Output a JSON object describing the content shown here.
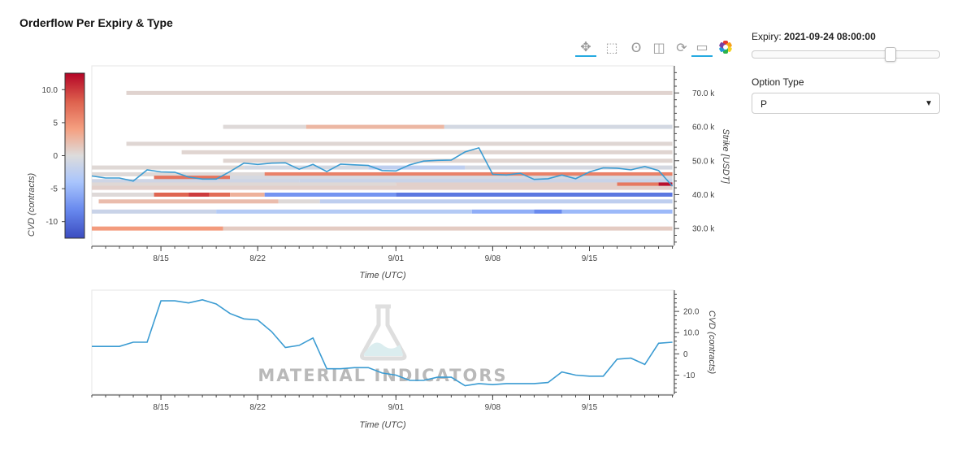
{
  "title": "Orderflow Per Expiry & Type",
  "sidebar": {
    "expiry_label": "Expiry:",
    "expiry_value": "2021-09-24 08:00:00",
    "expiry_slider_fraction": 0.75,
    "option_type_label": "Option Type",
    "option_type_value": "P"
  },
  "toolbar": {
    "tools": [
      {
        "icon": "pan-icon",
        "glyph": "✥",
        "active": true
      },
      {
        "icon": "box-zoom-icon",
        "glyph": "⬚",
        "active": false
      },
      {
        "icon": "wheel-zoom-icon",
        "glyph": "ʘ",
        "active": false
      },
      {
        "icon": "save-icon",
        "glyph": "◫",
        "active": false
      },
      {
        "icon": "reset-icon",
        "glyph": "⟳",
        "active": false
      },
      {
        "icon": "hover-icon",
        "glyph": "▭",
        "active": true
      },
      {
        "icon": "bokeh-logo-icon",
        "glyph": "",
        "active": false
      }
    ]
  },
  "watermark": "MATERIAL INDICATORS",
  "colorbar": {
    "label": "CVD (contracts)",
    "min": -12.5,
    "max": 12.5,
    "ticks": [
      10.0,
      5,
      0,
      -5,
      -10
    ],
    "tick_labels": [
      "10.0",
      "5",
      "0",
      "-5",
      "-10"
    ],
    "colors": [
      "#b40426",
      "#dd604d",
      "#f5a081",
      "#dddcdc",
      "#a9c5fc",
      "#6788ee",
      "#3b4cc0"
    ]
  },
  "chart_data": [
    {
      "type": "heatmap",
      "title": "",
      "xlabel": "Time (UTC)",
      "ylabel": "Strike [USDT]",
      "x_ticks": [
        "2021-08-15",
        "2021-08-22",
        "2021-09-01",
        "2021-09-08",
        "2021-09-15"
      ],
      "x_tick_labels": [
        "8/15",
        "8/22",
        "9/01",
        "9/08",
        "9/15"
      ],
      "xlim": [
        "2021-08-10",
        "2021-09-21T02:00"
      ],
      "ylim": [
        25000,
        78000
      ],
      "y_ticks": [
        30000,
        40000,
        50000,
        60000,
        70000
      ],
      "y_tick_labels": [
        "30.0 k",
        "40.0 k",
        "50.0 k",
        "60.0 k",
        "70.0 k"
      ],
      "strikes": [
        {
          "strike": 70000,
          "segments": [
            {
              "start": "2021-08-12T12:00",
              "end": "2021-09-21",
              "cvd": 0.6
            }
          ]
        },
        {
          "strike": 60000,
          "segments": [
            {
              "start": "2021-08-19T12:00",
              "end": "2021-08-25T12:00",
              "cvd": 0.2
            },
            {
              "start": "2021-08-25T12:00",
              "end": "2021-09-04T12:00",
              "cvd": 2.6
            },
            {
              "start": "2021-09-04T12:00",
              "end": "2021-09-21",
              "cvd": -0.8
            }
          ]
        },
        {
          "strike": 55000,
          "segments": [
            {
              "start": "2021-08-12T12:00",
              "end": "2021-09-21",
              "cvd": 0.4
            }
          ]
        },
        {
          "strike": 52500,
          "segments": [
            {
              "start": "2021-08-16T12:00",
              "end": "2021-09-21",
              "cvd": 0.5
            }
          ]
        },
        {
          "strike": 50000,
          "segments": [
            {
              "start": "2021-08-19T12:00",
              "end": "2021-09-21",
              "cvd": 0.5
            }
          ]
        },
        {
          "strike": 48000,
          "segments": [
            {
              "start": "2021-08-10",
              "end": "2021-08-21",
              "cvd": 0.3
            },
            {
              "start": "2021-08-21",
              "end": "2021-08-30",
              "cvd": -0.8
            },
            {
              "start": "2021-08-30",
              "end": "2021-09-06",
              "cvd": -2.5
            },
            {
              "start": "2021-09-06",
              "end": "2021-09-21",
              "cvd": -0.7
            }
          ]
        },
        {
          "strike": 46000,
          "segments": [
            {
              "start": "2021-08-10",
              "end": "2021-08-22T12:00",
              "cvd": 0.2
            },
            {
              "start": "2021-08-22T12:00",
              "end": "2021-09-21",
              "cvd": 6.2
            }
          ]
        },
        {
          "strike": 45000,
          "segments": [
            {
              "start": "2021-08-14T12:00",
              "end": "2021-08-20",
              "cvd": 7.0
            },
            {
              "start": "2021-08-20",
              "end": "2021-09-21",
              "cvd": -0.6
            }
          ]
        },
        {
          "strike": 44000,
          "segments": [
            {
              "start": "2021-08-10",
              "end": "2021-08-25",
              "cvd": -1.2
            },
            {
              "start": "2021-08-25",
              "end": "2021-09-21",
              "cvd": -1.6
            }
          ]
        },
        {
          "strike": 43000,
          "segments": [
            {
              "start": "2021-08-10",
              "end": "2021-09-01",
              "cvd": 0.3
            },
            {
              "start": "2021-09-01",
              "end": "2021-09-17",
              "cvd": 0.8
            },
            {
              "start": "2021-09-17",
              "end": "2021-09-20",
              "cvd": 6.8
            },
            {
              "start": "2021-09-20",
              "end": "2021-09-21",
              "cvd": 12.0
            }
          ]
        },
        {
          "strike": 42000,
          "segments": [
            {
              "start": "2021-08-10",
              "end": "2021-09-21",
              "cvd": 0.8
            }
          ]
        },
        {
          "strike": 40000,
          "segments": [
            {
              "start": "2021-08-10",
              "end": "2021-08-14T12:00",
              "cvd": 0.2
            },
            {
              "start": "2021-08-14T12:00",
              "end": "2021-08-17",
              "cvd": 8.0
            },
            {
              "start": "2021-08-17",
              "end": "2021-08-18T12:00",
              "cvd": 10.0
            },
            {
              "start": "2021-08-18T12:00",
              "end": "2021-08-20",
              "cvd": 7.5
            },
            {
              "start": "2021-08-20",
              "end": "2021-08-22T12:00",
              "cvd": 3.0
            },
            {
              "start": "2021-08-22T12:00",
              "end": "2021-09-01",
              "cvd": -7.5
            },
            {
              "start": "2021-09-01",
              "end": "2021-09-21",
              "cvd": -9.5
            }
          ]
        },
        {
          "strike": 38000,
          "segments": [
            {
              "start": "2021-08-10T12:00",
              "end": "2021-08-23T12:00",
              "cvd": 2.2
            },
            {
              "start": "2021-08-23T12:00",
              "end": "2021-08-26T12:00",
              "cvd": 0.2
            },
            {
              "start": "2021-08-26T12:00",
              "end": "2021-09-21",
              "cvd": -2.5
            }
          ]
        },
        {
          "strike": 35000,
          "segments": [
            {
              "start": "2021-08-10",
              "end": "2021-08-19",
              "cvd": -1.6
            },
            {
              "start": "2021-08-19",
              "end": "2021-09-06T12:00",
              "cvd": -3.3
            },
            {
              "start": "2021-09-06T12:00",
              "end": "2021-09-11",
              "cvd": -5.8
            },
            {
              "start": "2021-09-11",
              "end": "2021-09-13",
              "cvd": -8.2
            },
            {
              "start": "2021-09-13",
              "end": "2021-09-21",
              "cvd": -5.0
            }
          ]
        },
        {
          "strike": 30000,
          "segments": [
            {
              "start": "2021-08-10",
              "end": "2021-08-19T12:00",
              "cvd": 4.5
            },
            {
              "start": "2021-08-19T12:00",
              "end": "2021-09-21",
              "cvd": 1.2
            }
          ]
        }
      ],
      "price_series": {
        "name": "",
        "x": [
          "2021-08-10",
          "2021-08-11",
          "2021-08-12",
          "2021-08-13",
          "2021-08-14",
          "2021-08-15",
          "2021-08-16",
          "2021-08-17",
          "2021-08-18",
          "2021-08-19",
          "2021-08-20",
          "2021-08-21",
          "2021-08-22",
          "2021-08-23",
          "2021-08-24",
          "2021-08-25",
          "2021-08-26",
          "2021-08-27",
          "2021-08-28",
          "2021-08-29",
          "2021-08-30",
          "2021-08-31",
          "2021-09-01",
          "2021-09-02",
          "2021-09-03",
          "2021-09-04",
          "2021-09-05",
          "2021-09-06",
          "2021-09-07",
          "2021-09-08",
          "2021-09-09",
          "2021-09-10",
          "2021-09-11",
          "2021-09-12",
          "2021-09-13",
          "2021-09-14",
          "2021-09-15",
          "2021-09-16",
          "2021-09-17",
          "2021-09-18",
          "2021-09-19",
          "2021-09-20",
          "2021-09-21"
        ],
        "values": [
          45500,
          44900,
          44900,
          44000,
          47300,
          46700,
          46600,
          45200,
          44600,
          44600,
          46800,
          49300,
          48900,
          49300,
          49400,
          47500,
          48900,
          46800,
          49000,
          48800,
          48600,
          47100,
          47000,
          48800,
          49900,
          50100,
          50200,
          52600,
          53800,
          46000,
          45800,
          46300,
          44500,
          44700,
          45800,
          44700,
          46700,
          47900,
          47800,
          47300,
          48300,
          47100,
          42500
        ]
      }
    },
    {
      "type": "line",
      "title": "",
      "xlabel": "Time (UTC)",
      "ylabel": "CVD (contracts)",
      "x_ticks": [
        "2021-08-15",
        "2021-08-22",
        "2021-09-01",
        "2021-09-08",
        "2021-09-15"
      ],
      "x_tick_labels": [
        "8/15",
        "8/22",
        "9/01",
        "9/08",
        "9/15"
      ],
      "xlim": [
        "2021-08-10",
        "2021-09-21T02:00"
      ],
      "ylim": [
        -19,
        30
      ],
      "y_ticks": [
        20.0,
        10.0,
        0,
        -10
      ],
      "y_tick_labels": [
        "20.0",
        "10.0",
        "0",
        "-10"
      ],
      "series": [
        {
          "name": "",
          "x": [
            "2021-08-10",
            "2021-08-11",
            "2021-08-12",
            "2021-08-13",
            "2021-08-14",
            "2021-08-15",
            "2021-08-16",
            "2021-08-17",
            "2021-08-18",
            "2021-08-19",
            "2021-08-20",
            "2021-08-21",
            "2021-08-22",
            "2021-08-23",
            "2021-08-24",
            "2021-08-25",
            "2021-08-26",
            "2021-08-27",
            "2021-08-28",
            "2021-08-29",
            "2021-08-30",
            "2021-08-31",
            "2021-09-01",
            "2021-09-02",
            "2021-09-03",
            "2021-09-04",
            "2021-09-05",
            "2021-09-06",
            "2021-09-07",
            "2021-09-08",
            "2021-09-09",
            "2021-09-10",
            "2021-09-11",
            "2021-09-12",
            "2021-09-13",
            "2021-09-14",
            "2021-09-15",
            "2021-09-16",
            "2021-09-17",
            "2021-09-18",
            "2021-09-19",
            "2021-09-20",
            "2021-09-21"
          ],
          "values": [
            3.5,
            3.5,
            3.5,
            5.5,
            5.5,
            25.0,
            25.0,
            24.0,
            25.5,
            23.5,
            19.0,
            16.5,
            16.0,
            10.5,
            3.0,
            4.0,
            7.5,
            -7.0,
            -7.0,
            -6.5,
            -6.5,
            -9.0,
            -10.0,
            -12.5,
            -12.5,
            -11.0,
            -11.0,
            -15.0,
            -14.0,
            -14.5,
            -14.0,
            -14.0,
            -14.0,
            -13.5,
            -8.5,
            -10.0,
            -10.5,
            -10.5,
            -2.5,
            -2.0,
            -5.0,
            5.0,
            5.5
          ]
        }
      ]
    }
  ]
}
